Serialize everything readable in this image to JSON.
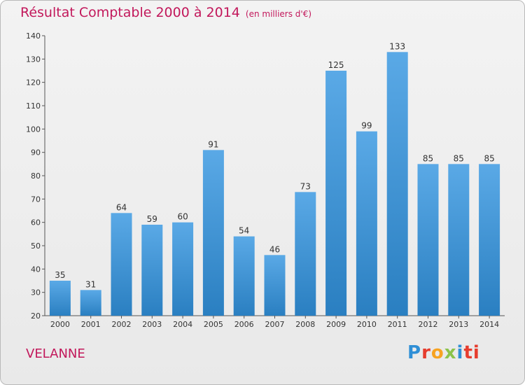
{
  "header": {
    "title": "Résultat Comptable 2000 à 2014",
    "subtitle": "(en milliers d'€)"
  },
  "footer": {
    "place": "VELANNE",
    "logo_letters": [
      "P",
      "r",
      "o",
      "x",
      "i",
      "ti"
    ]
  },
  "colors": {
    "bar_light": "#5aa9e6",
    "bar_dark": "#2a7fc1",
    "title": "#c2185b"
  },
  "chart_data": {
    "type": "bar",
    "title": "Résultat Comptable 2000 à 2014",
    "subtitle": "(en milliers d'€)",
    "xlabel": "",
    "ylabel": "",
    "categories": [
      "2000",
      "2001",
      "2002",
      "2003",
      "2004",
      "2005",
      "2006",
      "2007",
      "2008",
      "2009",
      "2010",
      "2011",
      "2012",
      "2013",
      "2014"
    ],
    "values": [
      35,
      31,
      64,
      59,
      60,
      91,
      54,
      46,
      73,
      125,
      99,
      133,
      85,
      85,
      85
    ],
    "ylim": [
      20,
      140
    ],
    "yticks": [
      20,
      30,
      40,
      50,
      60,
      70,
      80,
      90,
      100,
      110,
      120,
      130,
      140
    ],
    "grid": false,
    "legend": "none"
  }
}
